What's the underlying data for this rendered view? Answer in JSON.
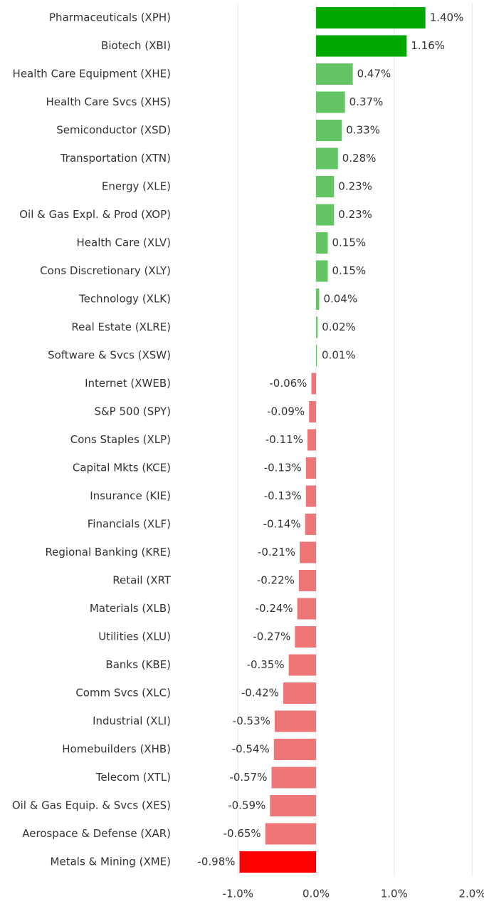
{
  "chart_data": {
    "type": "bar",
    "orientation": "horizontal",
    "categories": [
      "Pharmaceuticals (XPH)",
      "Biotech (XBI)",
      "Health Care Equipment (XHE)",
      "Health Care Svcs (XHS)",
      "Semiconductor (XSD)",
      "Transportation (XTN)",
      "Energy (XLE)",
      "Oil & Gas Expl. & Prod (XOP)",
      "Health Care (XLV)",
      "Cons Discretionary (XLY)",
      "Technology (XLK)",
      "Real Estate (XLRE)",
      "Software & Svcs (XSW)",
      "Internet (XWEB)",
      "S&P 500 (SPY)",
      "Cons Staples (XLP)",
      "Capital Mkts (KCE)",
      "Insurance (KIE)",
      "Financials (XLF)",
      "Regional Banking (KRE)",
      "Retail (XRT",
      "Materials (XLB)",
      "Utilities (XLU)",
      "Banks (KBE)",
      "Comm Svcs (XLC)",
      "Industrial (XLI)",
      "Homebuilders (XHB)",
      "Telecom (XTL)",
      "Oil & Gas Equip. & Svcs (XES)",
      "Aerospace & Defense (XAR)",
      "Metals & Mining (XME)"
    ],
    "values": [
      1.4,
      1.16,
      0.47,
      0.37,
      0.33,
      0.28,
      0.23,
      0.23,
      0.15,
      0.15,
      0.04,
      0.02,
      0.01,
      -0.06,
      -0.09,
      -0.11,
      -0.13,
      -0.13,
      -0.14,
      -0.21,
      -0.22,
      -0.24,
      -0.27,
      -0.35,
      -0.42,
      -0.53,
      -0.54,
      -0.57,
      -0.59,
      -0.65,
      -0.98
    ],
    "value_labels": [
      "1.40%",
      "1.16%",
      "0.47%",
      "0.37%",
      "0.33%",
      "0.28%",
      "0.23%",
      "0.23%",
      "0.15%",
      "0.15%",
      "0.04%",
      "0.02%",
      "0.01%",
      "-0.06%",
      "-0.09%",
      "-0.11%",
      "-0.13%",
      "-0.13%",
      "-0.14%",
      "-0.21%",
      "-0.22%",
      "-0.24%",
      "-0.27%",
      "-0.35%",
      "-0.42%",
      "-0.53%",
      "-0.54%",
      "-0.57%",
      "-0.59%",
      "-0.65%",
      "-0.98%"
    ],
    "colors": [
      "#00a800",
      "#00a800",
      "#62c462",
      "#62c462",
      "#62c462",
      "#62c462",
      "#62c462",
      "#62c462",
      "#62c462",
      "#62c462",
      "#62c462",
      "#62c462",
      "#62c462",
      "#ee7676",
      "#ee7676",
      "#ee7676",
      "#ee7676",
      "#ee7676",
      "#ee7676",
      "#ee7676",
      "#ee7676",
      "#ee7676",
      "#ee7676",
      "#ee7676",
      "#ee7676",
      "#ee7676",
      "#ee7676",
      "#ee7676",
      "#ee7676",
      "#ee7676",
      "#ff0000"
    ],
    "xlim": [
      -1.75,
      2.15
    ],
    "xticks": [
      {
        "value": -1,
        "label": "-1.0%"
      },
      {
        "value": 0,
        "label": "0.0%"
      },
      {
        "value": 1,
        "label": "1.0%"
      },
      {
        "value": 2,
        "label": "2.0%"
      }
    ],
    "grid": true
  }
}
